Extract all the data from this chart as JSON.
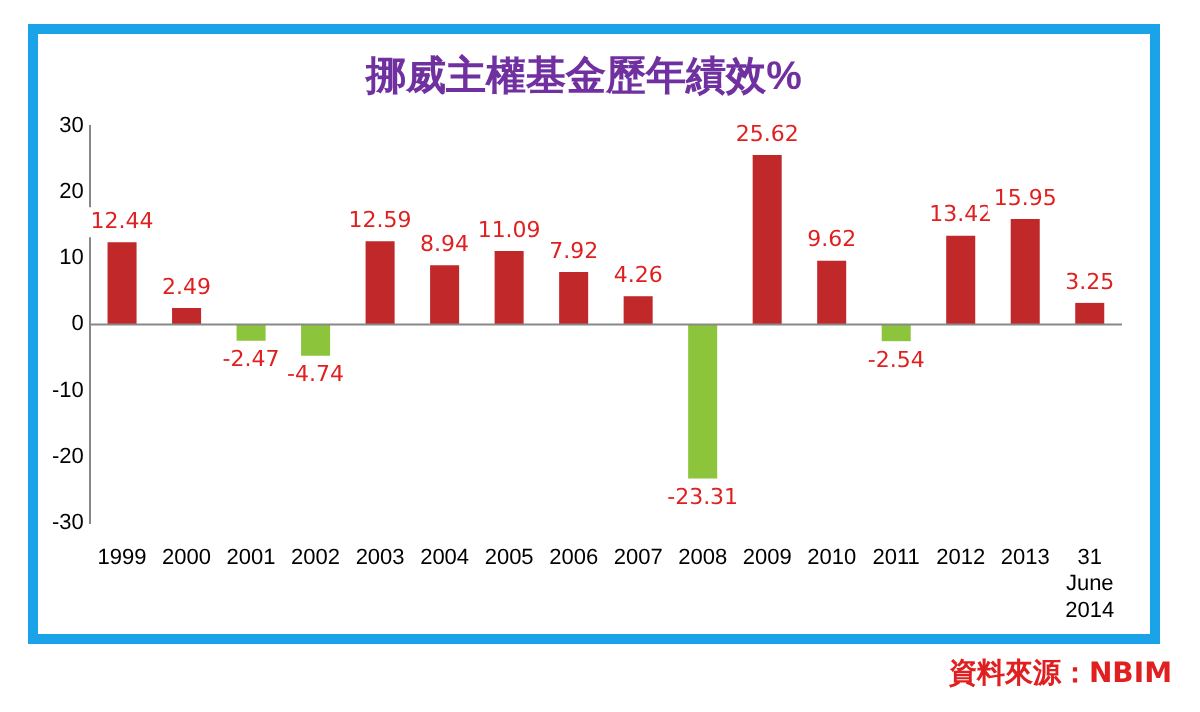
{
  "chart_data": {
    "type": "bar",
    "title": "挪威主權基金歷年績效%",
    "categories": [
      "1999",
      "2000",
      "2001",
      "2002",
      "2003",
      "2004",
      "2005",
      "2006",
      "2007",
      "2008",
      "2009",
      "2010",
      "2011",
      "2012",
      "2013",
      "31 June 2014"
    ],
    "values": [
      12.44,
      2.49,
      -2.47,
      -4.74,
      12.59,
      8.94,
      11.09,
      7.92,
      4.26,
      -23.31,
      25.62,
      9.62,
      -2.54,
      13.42,
      15.95,
      3.25
    ],
    "colors": [
      "#c0282a",
      "#c0282a",
      "#8cc43c",
      "#8cc43c",
      "#c0282a",
      "#c0282a",
      "#c0282a",
      "#c0282a",
      "#c0282a",
      "#8cc43c",
      "#c0282a",
      "#c0282a",
      "#8cc43c",
      "#c0282a",
      "#c0282a",
      "#c0282a"
    ],
    "ylim": [
      -30,
      30
    ],
    "yticks": [
      -30,
      -20,
      -10,
      0,
      10,
      20,
      30
    ],
    "data_labels": true,
    "legend": false,
    "annotations": [
      "資料來源：NBIM"
    ]
  }
}
